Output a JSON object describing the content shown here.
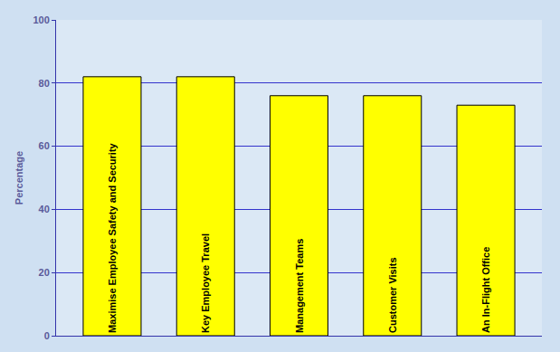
{
  "chart_data": {
    "type": "bar",
    "y_label": "Percentage",
    "categories": [
      "Maximise Employee Safety and Security",
      "Key Employee Travel",
      "Management Teams",
      "Customer Visits",
      "An In-Flight Office"
    ],
    "values": [
      82,
      82,
      76,
      76,
      73
    ],
    "color": "#ffff00",
    "ylim": [
      0,
      100
    ],
    "yticks": [
      0,
      20,
      40,
      60,
      80,
      100
    ],
    "grid": true,
    "tick_labels": "y"
  }
}
